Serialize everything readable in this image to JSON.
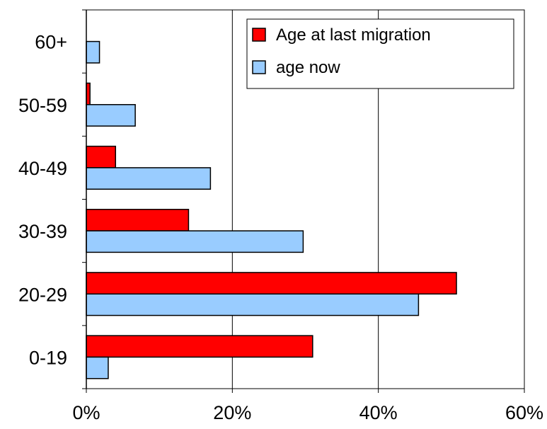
{
  "chart_data": {
    "type": "bar",
    "orientation": "horizontal",
    "categories": [
      "0-19",
      "20-29",
      "30-39",
      "40-49",
      "50-59",
      "60+"
    ],
    "series": [
      {
        "name": "Age at last migration",
        "color": "#FF0000",
        "values": [
          31,
          50.7,
          14,
          4,
          0.5,
          0
        ]
      },
      {
        "name": "age now",
        "color": "#99CCFF",
        "values": [
          3,
          45.5,
          29.7,
          17,
          6.7,
          1.8
        ]
      }
    ],
    "x_ticks": [
      "0%",
      "20%",
      "40%",
      "60%"
    ],
    "xlim": [
      0,
      60
    ],
    "x_unit": "%",
    "grid": "vertical",
    "legend": "top-right",
    "title": "",
    "xlabel": "",
    "ylabel": ""
  }
}
